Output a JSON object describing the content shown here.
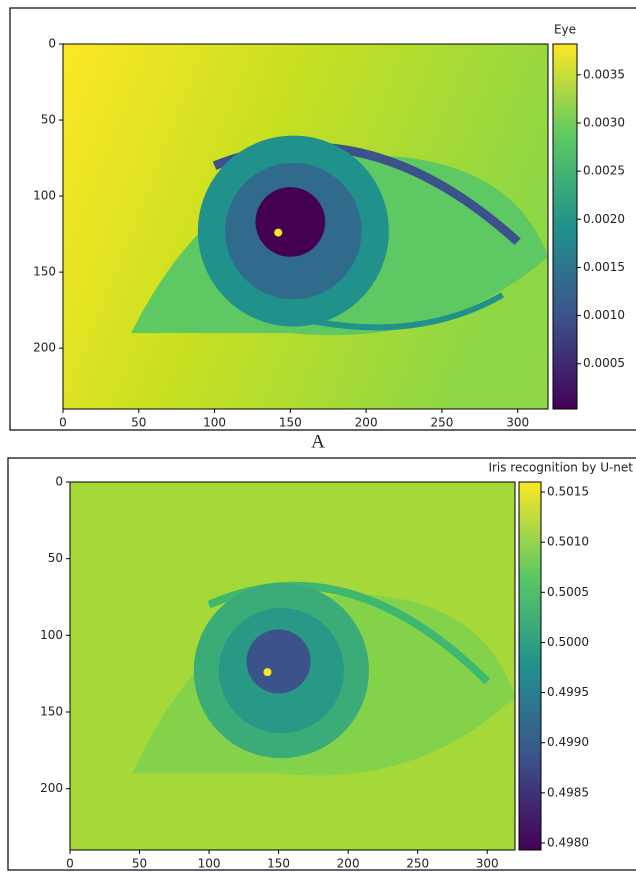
{
  "caption": "A",
  "chart_data": [
    {
      "type": "heatmap",
      "title": "Eye",
      "xlim": [
        0,
        320
      ],
      "ylim": [
        240,
        0
      ],
      "xticks": [
        0,
        50,
        100,
        150,
        200,
        250,
        300
      ],
      "yticks": [
        0,
        50,
        100,
        150,
        200
      ],
      "colormap": [
        "#440154",
        "#3b528b",
        "#21918c",
        "#5ec962",
        "#fde725"
      ],
      "clim": [
        3e-05,
        0.00382
      ],
      "cticks": [
        {
          "value": 0.0005,
          "label": "0.0005"
        },
        {
          "value": 0.001,
          "label": "0.0010"
        },
        {
          "value": 0.0015,
          "label": "0.0015"
        },
        {
          "value": 0.002,
          "label": "0.0020"
        },
        {
          "value": 0.0025,
          "label": "0.0025"
        },
        {
          "value": 0.003,
          "label": "0.0030"
        },
        {
          "value": 0.0035,
          "label": "0.0035"
        }
      ]
    },
    {
      "type": "heatmap",
      "title": "Iris recognition by U-net",
      "xlim": [
        0,
        320
      ],
      "ylim": [
        240,
        0
      ],
      "xticks": [
        0,
        50,
        100,
        150,
        200,
        250,
        300
      ],
      "yticks": [
        0,
        50,
        100,
        150,
        200
      ],
      "colormap": [
        "#440154",
        "#3b528b",
        "#21918c",
        "#5ec962",
        "#fde725"
      ],
      "clim": [
        0.49793,
        0.5016
      ],
      "cticks": [
        {
          "value": 0.498,
          "label": "0.4980"
        },
        {
          "value": 0.4985,
          "label": "0.4985"
        },
        {
          "value": 0.499,
          "label": "0.4990"
        },
        {
          "value": 0.4995,
          "label": "0.4995"
        },
        {
          "value": 0.5,
          "label": "0.5000"
        },
        {
          "value": 0.5005,
          "label": "0.5005"
        },
        {
          "value": 0.501,
          "label": "0.5010"
        },
        {
          "value": 0.5015,
          "label": "0.5015"
        }
      ]
    }
  ]
}
